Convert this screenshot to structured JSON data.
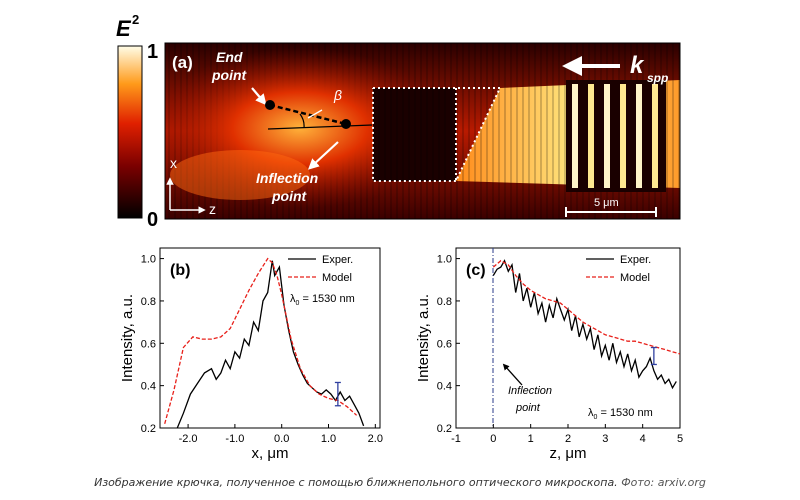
{
  "figure": {
    "colorbar": {
      "label_main": "E",
      "label_sup": "2",
      "max_label": "1",
      "min_label": "0"
    },
    "panel_a": {
      "label": "(a)",
      "end_point": [
        "End",
        "point"
      ],
      "inflection_point": [
        "Inflection",
        "point"
      ],
      "beta": "β",
      "k_label": "k",
      "k_sub": "spp",
      "axis_x": "x",
      "axis_z": "z",
      "scale_bar": "5 μm"
    }
  },
  "chart_data": [
    {
      "type": "line",
      "label": "(b)",
      "xlabel": "x, μm",
      "ylabel": "Intensity, a.u.",
      "xlim": [
        -2.6,
        2.1
      ],
      "ylim": [
        0.2,
        1.05
      ],
      "xticks": [
        -2.0,
        -1.0,
        0.0,
        1.0,
        2.0
      ],
      "xtick_labels": [
        "-2.0",
        "-1.0",
        "0.0",
        "1.0",
        "2.0"
      ],
      "yticks": [
        0.2,
        0.4,
        0.6,
        0.8,
        1.0
      ],
      "ytick_labels": [
        "0.2",
        "0.4",
        "0.6",
        "0.8",
        "1.0"
      ],
      "legend": [
        "Exper.",
        "Model"
      ],
      "annotation": "λ",
      "annotation_sub": "0",
      "annotation_tail": " = 1530 nm",
      "series": [
        {
          "name": "Exper.",
          "x": [
            -2.25,
            -2.1,
            -1.95,
            -1.8,
            -1.65,
            -1.5,
            -1.4,
            -1.3,
            -1.2,
            -1.1,
            -1.0,
            -0.9,
            -0.8,
            -0.7,
            -0.6,
            -0.5,
            -0.4,
            -0.3,
            -0.2,
            -0.15,
            -0.05,
            0.05,
            0.15,
            0.25,
            0.35,
            0.45,
            0.55,
            0.65,
            0.75,
            0.85,
            0.95,
            1.05,
            1.15,
            1.25,
            1.35,
            1.45,
            1.55,
            1.65,
            1.75
          ],
          "y": [
            0.19,
            0.27,
            0.36,
            0.41,
            0.46,
            0.48,
            0.43,
            0.46,
            0.52,
            0.48,
            0.56,
            0.53,
            0.62,
            0.59,
            0.7,
            0.66,
            0.8,
            0.84,
            0.99,
            0.92,
            0.96,
            0.78,
            0.66,
            0.56,
            0.5,
            0.45,
            0.41,
            0.39,
            0.37,
            0.36,
            0.38,
            0.36,
            0.33,
            0.37,
            0.33,
            0.35,
            0.31,
            0.27,
            0.21
          ]
        },
        {
          "name": "Model",
          "x": [
            -2.5,
            -2.3,
            -2.1,
            -1.9,
            -1.7,
            -1.5,
            -1.3,
            -1.1,
            -0.9,
            -0.7,
            -0.5,
            -0.3,
            -0.2,
            -0.1,
            0.0,
            0.2,
            0.4,
            0.6,
            0.8,
            1.0,
            1.2,
            1.4,
            1.6
          ],
          "y": [
            0.22,
            0.38,
            0.58,
            0.63,
            0.62,
            0.62,
            0.63,
            0.67,
            0.76,
            0.85,
            0.93,
            1.0,
            0.98,
            0.92,
            0.83,
            0.62,
            0.48,
            0.4,
            0.36,
            0.34,
            0.33,
            0.3,
            0.26
          ]
        }
      ],
      "error_bar": {
        "x": 1.2,
        "y": 0.36,
        "err": 0.055
      }
    },
    {
      "type": "line",
      "label": "(c)",
      "xlabel": "z, μm",
      "ylabel": "Intensity, a.u.",
      "xlim": [
        -1,
        5
      ],
      "ylim": [
        0.2,
        1.05
      ],
      "xticks": [
        -1,
        0,
        1,
        2,
        3,
        4,
        5
      ],
      "xtick_labels": [
        "-1",
        "0",
        "1",
        "2",
        "3",
        "4",
        "5"
      ],
      "yticks": [
        0.2,
        0.4,
        0.6,
        0.8,
        1.0
      ],
      "ytick_labels": [
        "0.2",
        "0.4",
        "0.6",
        "0.8",
        "1.0"
      ],
      "legend": [
        "Exper.",
        "Model"
      ],
      "annotation": "λ",
      "annotation_sub": "0",
      "annotation_tail": " = 1530 nm",
      "inflection_label": [
        "Inflection",
        "point"
      ],
      "series": [
        {
          "name": "Exper.",
          "x": [
            0.0,
            0.1,
            0.2,
            0.3,
            0.4,
            0.5,
            0.6,
            0.7,
            0.8,
            0.9,
            1.0,
            1.1,
            1.2,
            1.3,
            1.4,
            1.5,
            1.6,
            1.7,
            1.8,
            1.9,
            2.0,
            2.1,
            2.2,
            2.3,
            2.4,
            2.5,
            2.6,
            2.7,
            2.8,
            2.9,
            3.0,
            3.1,
            3.2,
            3.3,
            3.4,
            3.5,
            3.6,
            3.7,
            3.8,
            3.9,
            4.0,
            4.1,
            4.2,
            4.3,
            4.4,
            4.5,
            4.6,
            4.7,
            4.8,
            4.9
          ],
          "y": [
            0.92,
            0.95,
            0.96,
            0.99,
            0.94,
            0.97,
            0.84,
            0.93,
            0.8,
            0.86,
            0.77,
            0.84,
            0.74,
            0.79,
            0.7,
            0.78,
            0.72,
            0.81,
            0.76,
            0.71,
            0.76,
            0.66,
            0.73,
            0.63,
            0.69,
            0.62,
            0.67,
            0.57,
            0.64,
            0.54,
            0.59,
            0.52,
            0.6,
            0.51,
            0.56,
            0.49,
            0.55,
            0.47,
            0.52,
            0.44,
            0.47,
            0.49,
            0.53,
            0.47,
            0.43,
            0.45,
            0.41,
            0.43,
            0.39,
            0.42
          ]
        },
        {
          "name": "Model",
          "x": [
            0.0,
            0.2,
            0.4,
            0.6,
            0.8,
            1.0,
            1.2,
            1.4,
            1.6,
            1.8,
            2.0,
            2.2,
            2.4,
            2.6,
            2.8,
            3.0,
            3.2,
            3.4,
            3.6,
            3.8,
            4.0,
            4.2,
            4.4,
            4.6,
            4.8,
            5.0
          ],
          "y": [
            0.96,
            0.99,
            0.97,
            0.92,
            0.88,
            0.85,
            0.83,
            0.81,
            0.8,
            0.79,
            0.76,
            0.73,
            0.7,
            0.68,
            0.66,
            0.64,
            0.63,
            0.62,
            0.61,
            0.61,
            0.6,
            0.59,
            0.58,
            0.57,
            0.56,
            0.55
          ]
        }
      ],
      "error_bar": {
        "x": 4.3,
        "y": 0.54,
        "err": 0.04
      }
    }
  ],
  "caption": {
    "text": "Изображение крючка, полученное с помощью ближнепольного оптического микроскопа.",
    "credit": "Фото: arxiv.org"
  }
}
